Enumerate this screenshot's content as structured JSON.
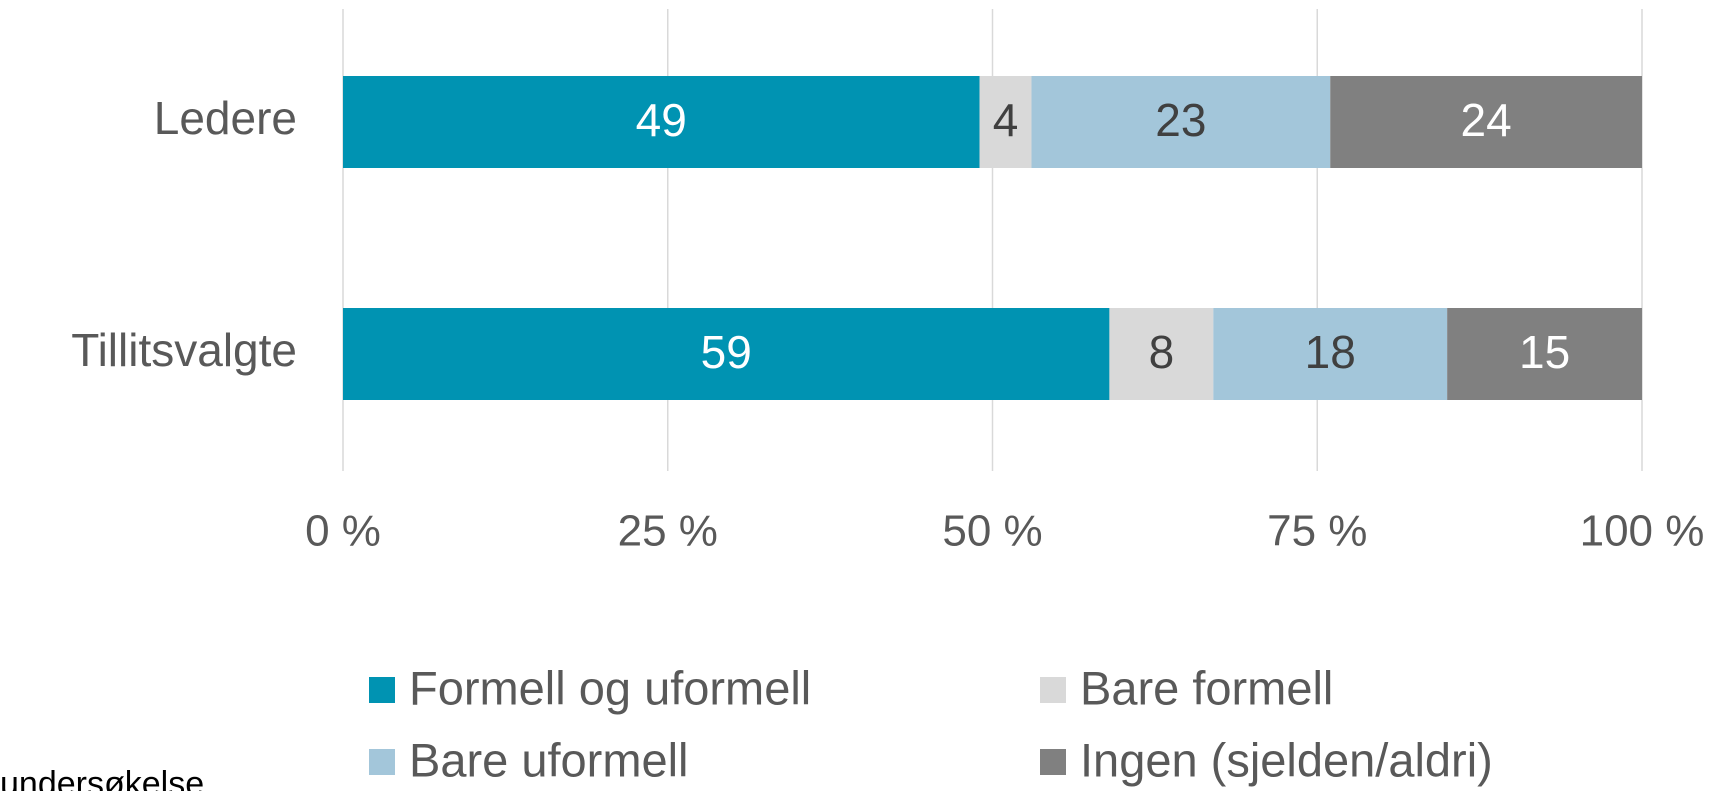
{
  "chart_data": {
    "type": "stacked_barh",
    "categories": [
      "Ledere",
      "Tillitsvalgte"
    ],
    "series": [
      {
        "name": "Formell og uformell",
        "color": "#0093b2",
        "label_color": "#ffffff",
        "values": [
          49,
          59
        ]
      },
      {
        "name": "Bare formell",
        "color": "#d9d9d9",
        "label_color": "#404040",
        "values": [
          4,
          8
        ]
      },
      {
        "name": "Bare uformell",
        "color": "#a3c6da",
        "label_color": "#404040",
        "values": [
          23,
          18
        ]
      },
      {
        "name": "Ingen (sjelden/aldri)",
        "color": "#808080",
        "label_color": "#ffffff",
        "values": [
          24,
          15
        ]
      }
    ],
    "xlim": [
      0,
      100
    ],
    "xticks": [
      {
        "value": 0,
        "label": "0 %"
      },
      {
        "value": 25,
        "label": "25 %"
      },
      {
        "value": 50,
        "label": "50 %"
      },
      {
        "value": 75,
        "label": "75 %"
      },
      {
        "value": 100,
        "label": "100 %"
      }
    ],
    "grid": true,
    "legend": "bottom",
    "source": "undersøkelse"
  }
}
